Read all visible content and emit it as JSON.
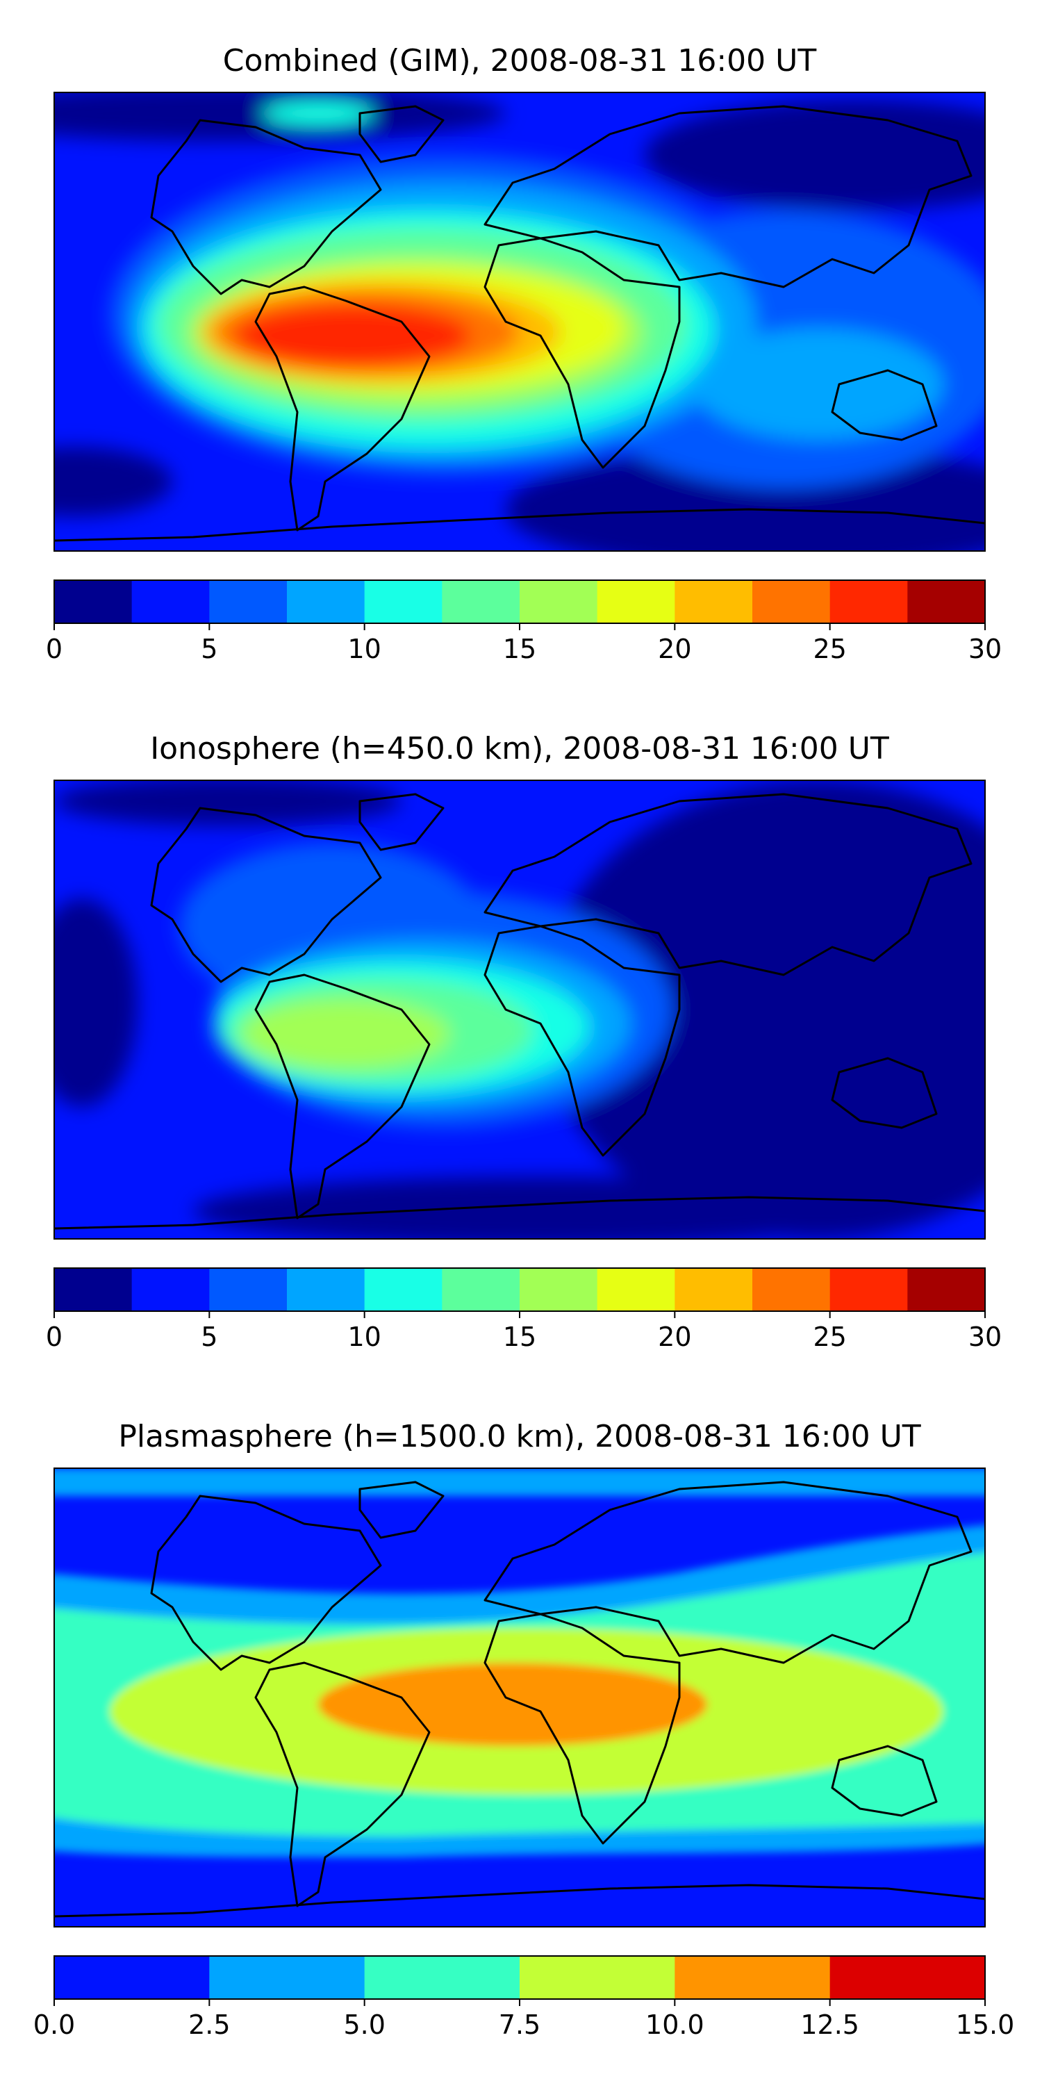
{
  "chart_data": [
    {
      "type": "heatmap",
      "title": "Combined (GIM), 2008-08-31 16:00 UT",
      "colorbar": {
        "levels": [
          0,
          2.5,
          5,
          7.5,
          10,
          12.5,
          15,
          17.5,
          20,
          22.5,
          25,
          27.5,
          30
        ],
        "colors": [
          "#00008f",
          "#0013ff",
          "#0059ff",
          "#00a5ff",
          "#19ffe6",
          "#5cff9c",
          "#a2ff55",
          "#e6ff14",
          "#ffbd00",
          "#ff7300",
          "#ff2800",
          "#a50000"
        ],
        "ticks": [
          0,
          5,
          10,
          15,
          20,
          25,
          30
        ],
        "tick_labels": [
          "0",
          "5",
          "10",
          "15",
          "20",
          "25",
          "30"
        ]
      },
      "map": "world, equirectangular, coastlines",
      "features": [
        {
          "region": "South America (Brazil)",
          "value": 26
        },
        {
          "region": "tropical Atlantic / Gulf of Guinea",
          "value": 23
        },
        {
          "region": "equatorial Africa",
          "value": 17
        },
        {
          "region": "Arabia / Indian Ocean",
          "value": 11
        },
        {
          "region": "Asia / Pacific mid-latitudes",
          "value": 7
        },
        {
          "region": "Australia",
          "value": 9
        },
        {
          "region": "high latitudes",
          "value": 3
        }
      ]
    },
    {
      "type": "heatmap",
      "title": "Ionosphere  (h=450.0 km), 2008-08-31 16:00 UT",
      "colorbar": {
        "levels": [
          0,
          2.5,
          5,
          7.5,
          10,
          12.5,
          15,
          17.5,
          20,
          22.5,
          25,
          27.5,
          30
        ],
        "colors": [
          "#00008f",
          "#0013ff",
          "#0059ff",
          "#00a5ff",
          "#19ffe6",
          "#5cff9c",
          "#a2ff55",
          "#e6ff14",
          "#ffbd00",
          "#ff7300",
          "#ff2800",
          "#a50000"
        ],
        "ticks": [
          0,
          5,
          10,
          15,
          20,
          25,
          30
        ],
        "tick_labels": [
          "0",
          "5",
          "10",
          "15",
          "20",
          "25",
          "30"
        ]
      },
      "map": "world, equirectangular, coastlines",
      "features": [
        {
          "region": "South America",
          "value": 16
        },
        {
          "region": "tropical Atlantic",
          "value": 13
        },
        {
          "region": "equatorial Africa",
          "value": 11
        },
        {
          "region": "Asia / Pacific",
          "value": 1
        },
        {
          "region": "North Atlantic",
          "value": 6
        }
      ]
    },
    {
      "type": "heatmap",
      "title": "Plasmasphere (h=1500.0 km), 2008-08-31 16:00 UT",
      "colorbar": {
        "levels": [
          0,
          2.5,
          5,
          7.5,
          10,
          12.5,
          15
        ],
        "colors": [
          "#0013ff",
          "#00a5ff",
          "#36ffc3",
          "#c3ff36",
          "#ff9400",
          "#dc0000"
        ],
        "ticks": [
          0,
          2.5,
          5,
          7.5,
          10,
          12.5,
          15
        ],
        "tick_labels": [
          "0.0",
          "2.5",
          "5.0",
          "7.5",
          "10.0",
          "12.5",
          "15.0"
        ]
      },
      "map": "world, equirectangular, coastlines",
      "features": [
        {
          "region": "equatorial Africa / South America",
          "value": 11
        },
        {
          "region": "tropical belt",
          "value": 8.5
        },
        {
          "region": "subtropics",
          "value": 6
        },
        {
          "region": "mid latitudes",
          "value": 3.5
        },
        {
          "region": "high latitudes",
          "value": 1
        }
      ]
    }
  ]
}
